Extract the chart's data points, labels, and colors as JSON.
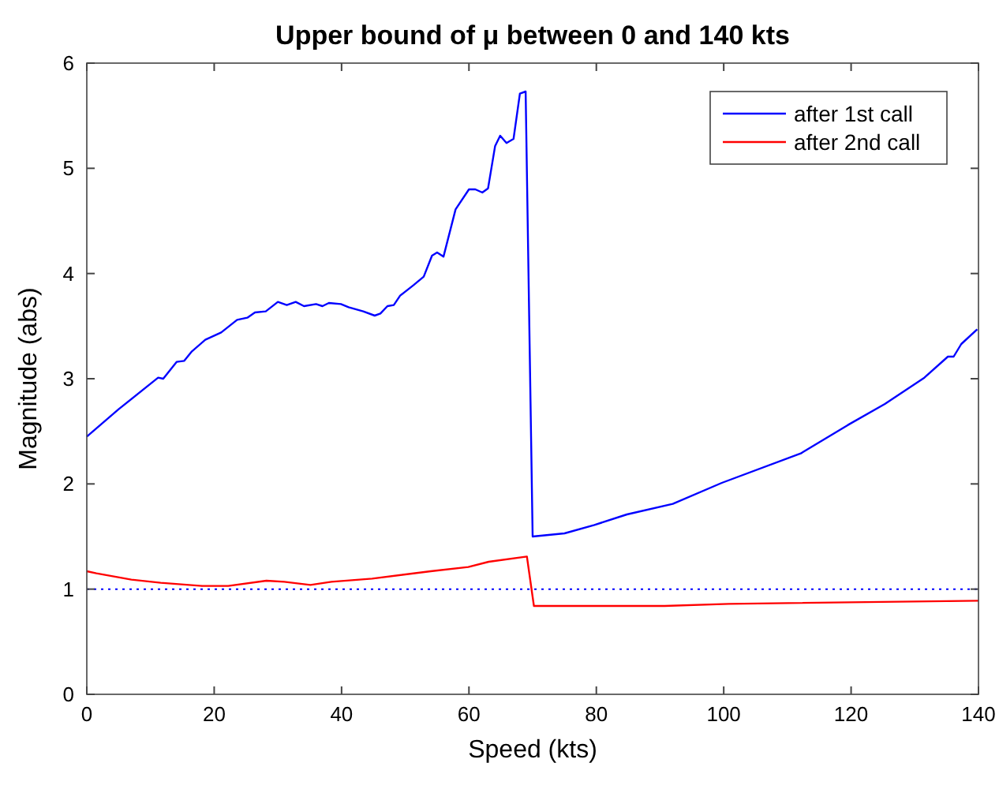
{
  "chart_data": {
    "type": "line",
    "title": "Upper bound of μ between 0 and 140 kts",
    "xlabel": "Speed (kts)",
    "ylabel": "Magnitude (abs)",
    "xlim": [
      0,
      140
    ],
    "xticks": [
      0,
      20,
      40,
      60,
      80,
      100,
      120,
      140
    ],
    "ylim": [
      0,
      6
    ],
    "yticks": [
      0,
      1,
      2,
      3,
      4,
      5,
      6
    ],
    "grid": false,
    "legend": "top right",
    "marker": "none",
    "line_style": "solid",
    "series": [
      {
        "name": "after 1st call",
        "color": "#0000ff",
        "x": [
          0,
          5,
          11.2,
          12,
          14.1,
          15.3,
          16.5,
          18.6,
          21.1,
          23.6,
          25.2,
          26.4,
          28.1,
          30,
          31.4,
          32.8,
          34.1,
          36,
          37,
          38,
          39.9,
          41.1,
          43.4,
          45.2,
          46.1,
          47.2,
          48.2,
          49.2,
          51.3,
          52.9,
          54.2,
          55,
          56,
          57.9,
          60,
          61,
          62.1,
          63,
          64.1,
          64.9,
          65.9,
          67,
          68,
          68.9,
          70,
          75,
          79.7,
          84.8,
          92,
          99.7,
          112.1,
          119.5,
          125.3,
          131.5,
          135.2,
          136.1,
          137.3,
          139.8
        ],
        "values": [
          2.45,
          2.71,
          3.01,
          3.0,
          3.16,
          3.17,
          3.26,
          3.37,
          3.44,
          3.56,
          3.58,
          3.63,
          3.64,
          3.73,
          3.7,
          3.73,
          3.69,
          3.71,
          3.69,
          3.72,
          3.71,
          3.68,
          3.64,
          3.6,
          3.62,
          3.69,
          3.7,
          3.79,
          3.89,
          3.97,
          4.17,
          4.2,
          4.16,
          4.61,
          4.8,
          4.8,
          4.77,
          4.81,
          5.21,
          5.31,
          5.24,
          5.28,
          5.71,
          5.73,
          1.5,
          1.53,
          1.61,
          1.71,
          1.81,
          2.01,
          2.29,
          2.56,
          2.76,
          3.01,
          3.21,
          3.21,
          3.33,
          3.47
        ]
      },
      {
        "name": "after 2nd call",
        "color": "#ff0000",
        "x": [
          0,
          1.5,
          7,
          11.6,
          18.1,
          22.2,
          28.2,
          31,
          35.1,
          38.4,
          44.8,
          54,
          59.9,
          63.1,
          69.1,
          70.2,
          90.7,
          100.8,
          140
        ],
        "values": [
          1.17,
          1.15,
          1.09,
          1.06,
          1.03,
          1.03,
          1.08,
          1.07,
          1.04,
          1.07,
          1.1,
          1.17,
          1.21,
          1.26,
          1.31,
          0.84,
          0.84,
          0.86,
          0.89
        ]
      }
    ],
    "ref_lines": [
      {
        "axis": "y",
        "value": 1,
        "color": "#0000ff",
        "line_style": "dotted"
      }
    ]
  }
}
